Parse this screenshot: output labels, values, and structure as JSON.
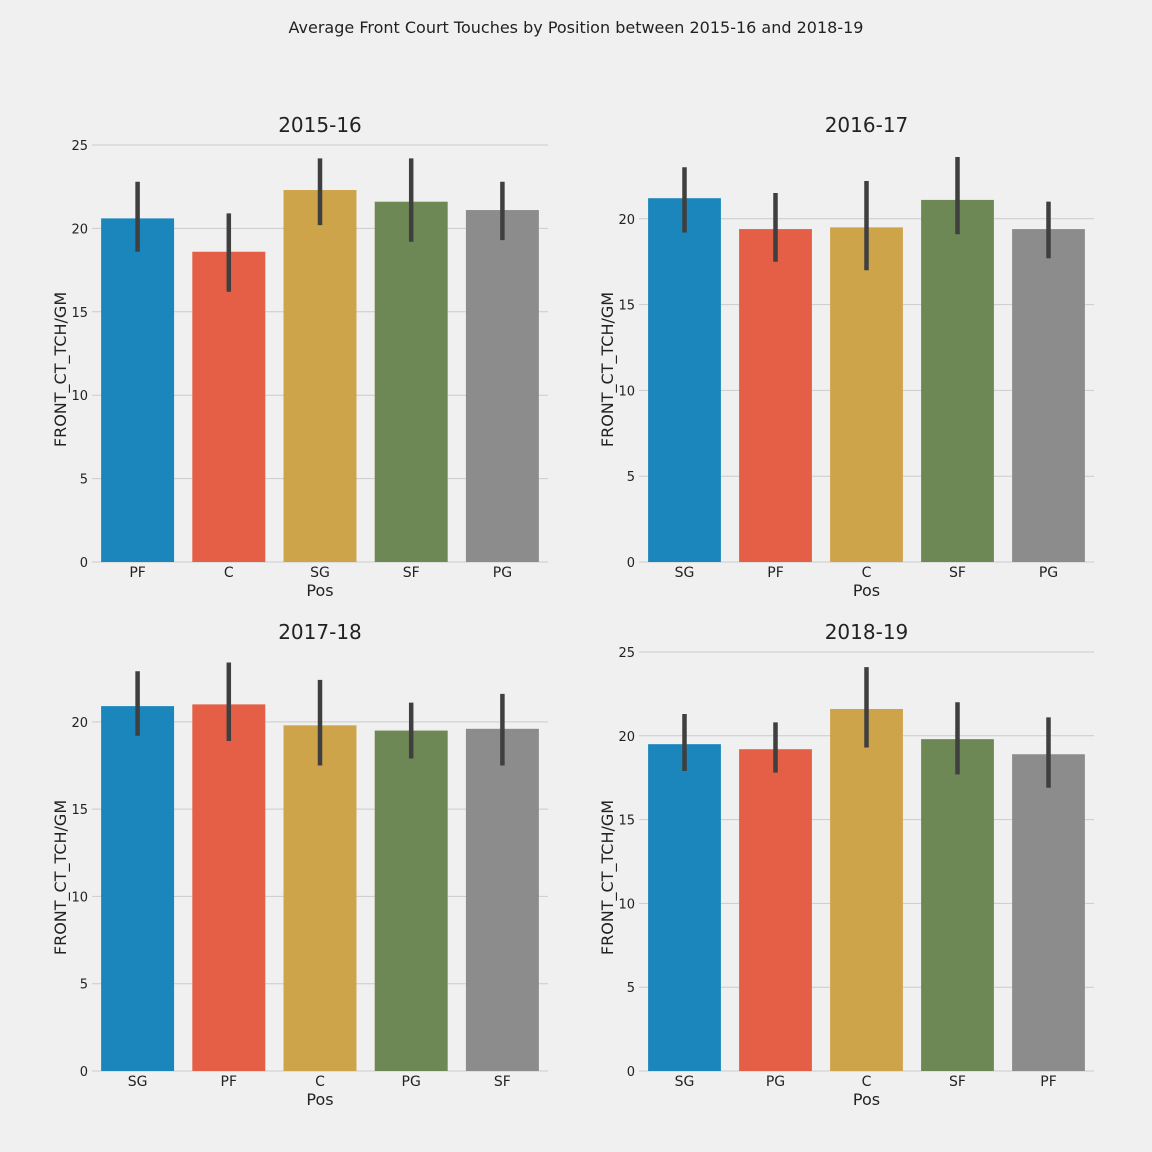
{
  "figure": {
    "title": "Average Front Court Touches by Position between 2015-16 and 2018-19"
  },
  "colors": {
    "blue": "#1a86bb",
    "red": "#e45f45",
    "gold": "#cea44b",
    "green": "#6d8855",
    "gray": "#8c8c8c",
    "errorbar": "#3f3f3f",
    "grid": "#cbcbcb",
    "background": "#f0f0f0"
  },
  "chart_data": [
    {
      "type": "bar",
      "title": "2015-16",
      "xlabel": "Pos",
      "ylabel": "FRONT_CT_TCH/GM",
      "categories": [
        "PF",
        "C",
        "SG",
        "SF",
        "PG"
      ],
      "values": [
        20.6,
        18.6,
        22.3,
        21.6,
        21.1
      ],
      "error_low": [
        18.6,
        16.2,
        20.2,
        19.2,
        19.3
      ],
      "error_high": [
        22.8,
        20.9,
        24.2,
        24.2,
        22.8
      ],
      "bar_colors": [
        "#1a86bb",
        "#e45f45",
        "#cea44b",
        "#6d8855",
        "#8c8c8c"
      ],
      "ylim": [
        0,
        25
      ],
      "yticks": [
        0,
        5,
        10,
        15,
        20,
        25
      ],
      "grid": true
    },
    {
      "type": "bar",
      "title": "2016-17",
      "xlabel": "Pos",
      "ylabel": "FRONT_CT_TCH/GM",
      "categories": [
        "SG",
        "PF",
        "C",
        "SF",
        "PG"
      ],
      "values": [
        21.2,
        19.4,
        19.5,
        21.1,
        19.4
      ],
      "error_low": [
        19.2,
        17.5,
        17.0,
        19.1,
        17.7
      ],
      "error_high": [
        23.0,
        21.5,
        22.2,
        23.6,
        21.0
      ],
      "bar_colors": [
        "#1a86bb",
        "#e45f45",
        "#cea44b",
        "#6d8855",
        "#8c8c8c"
      ],
      "ylim": [
        0,
        24.3
      ],
      "yticks": [
        0,
        5,
        10,
        15,
        20
      ],
      "grid": true
    },
    {
      "type": "bar",
      "title": "2017-18",
      "xlabel": "Pos",
      "ylabel": "FRONT_CT_TCH/GM",
      "categories": [
        "SG",
        "PF",
        "C",
        "PG",
        "SF"
      ],
      "values": [
        20.9,
        21.0,
        19.8,
        19.5,
        19.6
      ],
      "error_low": [
        19.2,
        18.9,
        17.5,
        17.9,
        17.5
      ],
      "error_high": [
        22.9,
        23.4,
        22.4,
        21.1,
        21.6
      ],
      "bar_colors": [
        "#1a86bb",
        "#e45f45",
        "#cea44b",
        "#6d8855",
        "#8c8c8c"
      ],
      "ylim": [
        0,
        24.0
      ],
      "yticks": [
        0,
        5,
        10,
        15,
        20
      ],
      "grid": true
    },
    {
      "type": "bar",
      "title": "2018-19",
      "xlabel": "Pos",
      "ylabel": "FRONT_CT_TCH/GM",
      "categories": [
        "SG",
        "PG",
        "C",
        "SF",
        "PF"
      ],
      "values": [
        19.5,
        19.2,
        21.6,
        19.8,
        18.9
      ],
      "error_low": [
        17.9,
        17.8,
        19.3,
        17.7,
        16.9
      ],
      "error_high": [
        21.3,
        20.8,
        24.1,
        22.0,
        21.1
      ],
      "bar_colors": [
        "#1a86bb",
        "#e45f45",
        "#cea44b",
        "#6d8855",
        "#8c8c8c"
      ],
      "ylim": [
        0,
        25
      ],
      "yticks": [
        0,
        5,
        10,
        15,
        20,
        25
      ],
      "grid": true
    }
  ]
}
